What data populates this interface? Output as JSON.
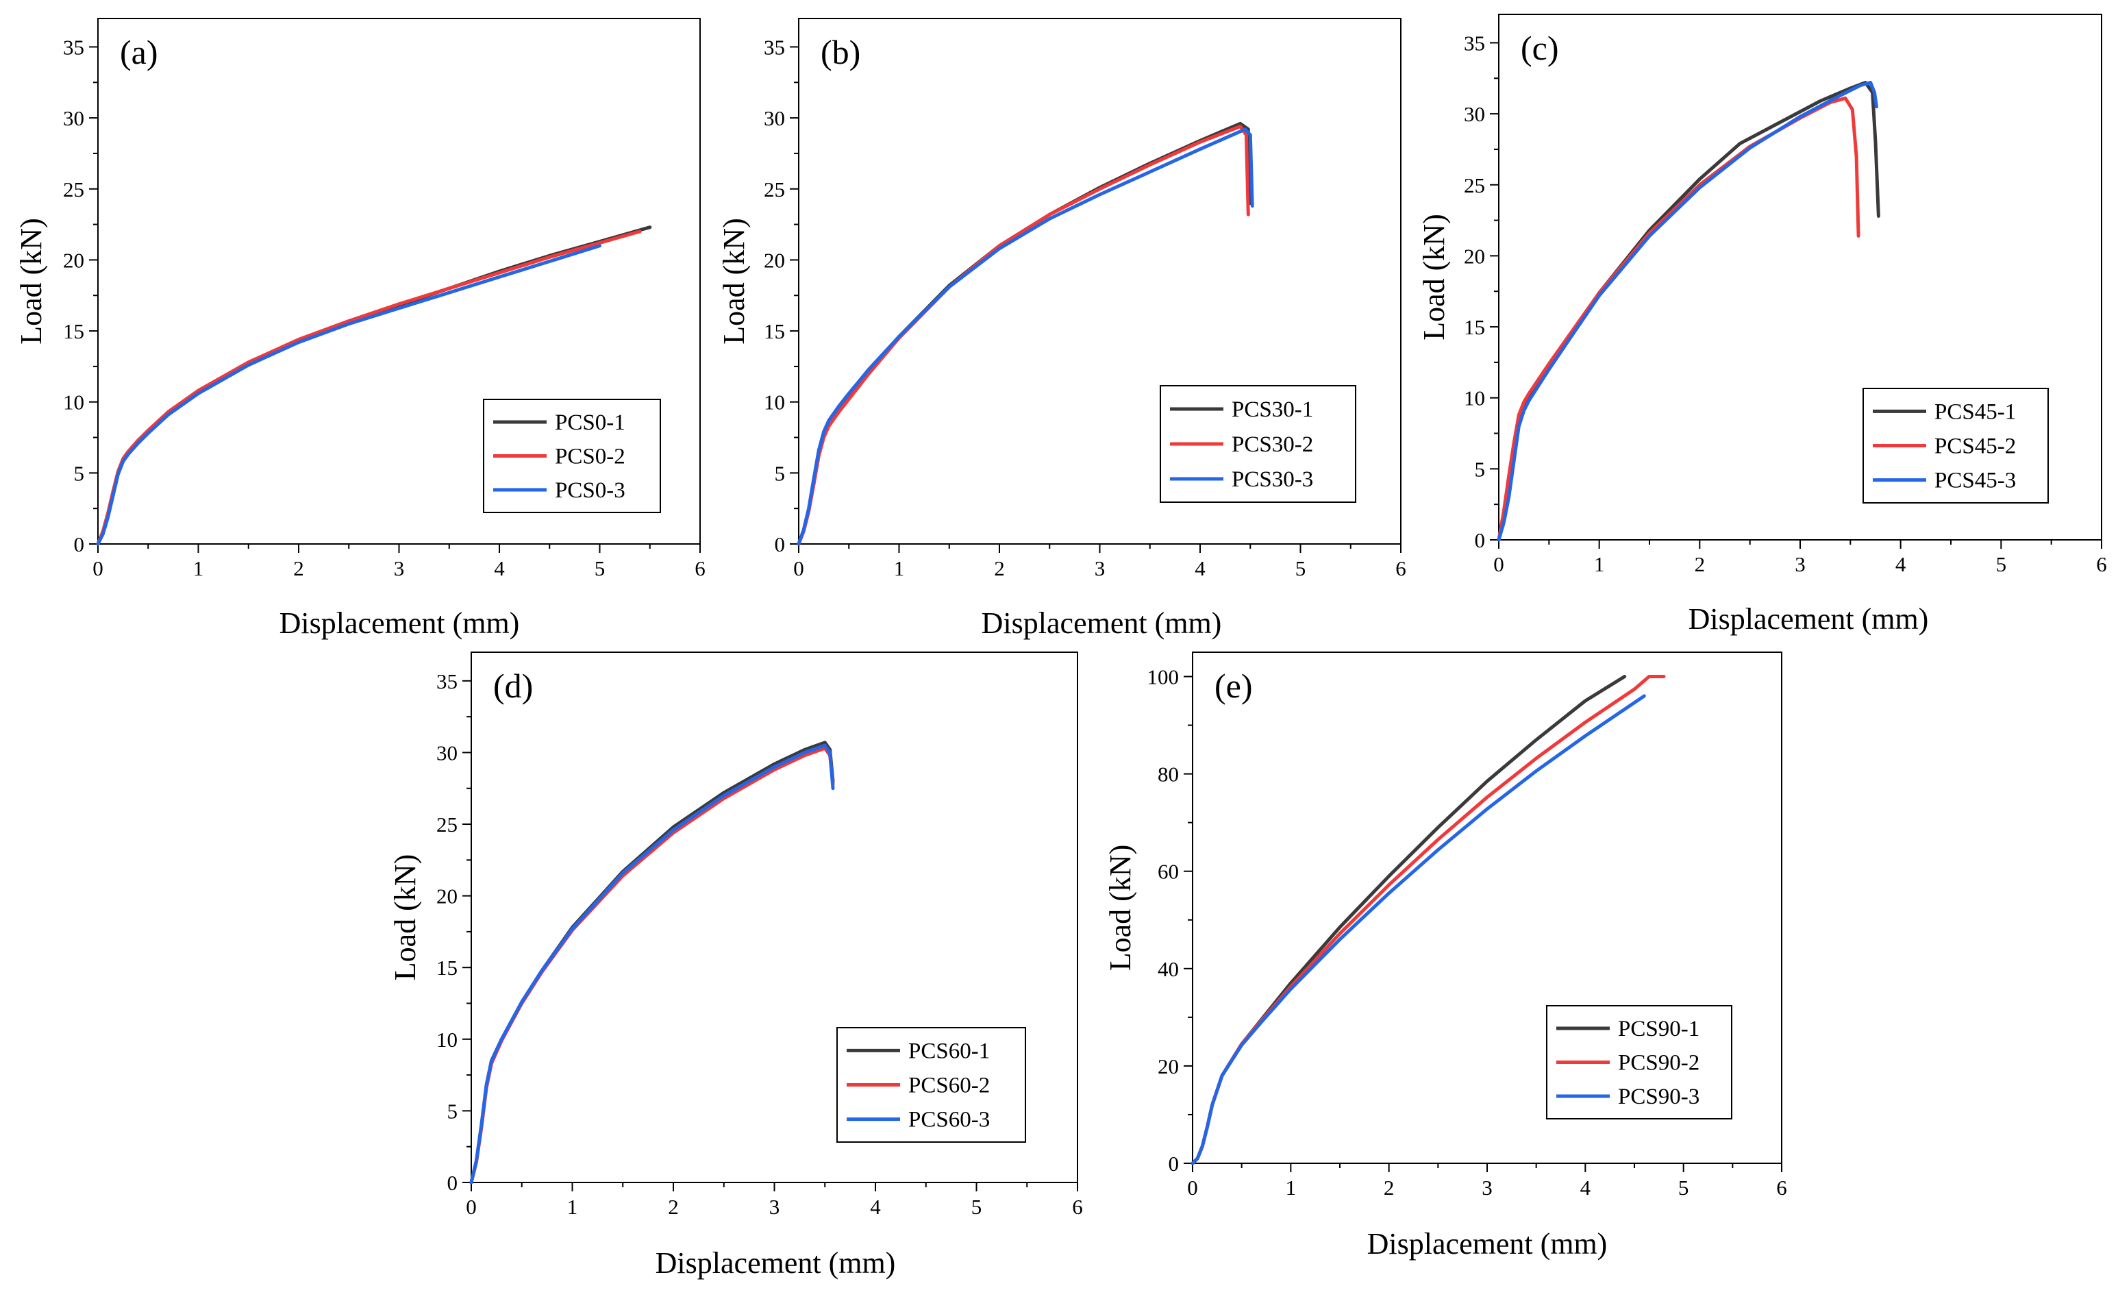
{
  "figure": {
    "colors": {
      "series1": "#3a3a3a",
      "series2": "#f03a3a",
      "series3": "#2566e6"
    }
  },
  "chart_data": [
    {
      "type": "line",
      "panel_label": "(a)",
      "xlabel": "Displacement (mm)",
      "ylabel": "Load (kN)",
      "xlim": [
        0,
        6
      ],
      "ylim": [
        0,
        37
      ],
      "xticks": [
        "0",
        "1",
        "2",
        "3",
        "4",
        "5",
        "6"
      ],
      "yticks": [
        "0",
        "5",
        "10",
        "15",
        "20",
        "25",
        "30",
        "35"
      ],
      "legend_position": "bottom-right",
      "series": [
        {
          "name": "PCS0-1",
          "x": [
            0,
            0.05,
            0.1,
            0.15,
            0.2,
            0.25,
            0.3,
            0.4,
            0.5,
            0.7,
            1.0,
            1.5,
            2.0,
            2.5,
            3.0,
            3.5,
            4.0,
            4.5,
            5.0,
            5.5
          ],
          "y": [
            0,
            0.8,
            2.0,
            3.5,
            5.0,
            5.9,
            6.4,
            7.2,
            7.9,
            9.2,
            10.7,
            12.7,
            14.3,
            15.6,
            16.8,
            18.0,
            19.2,
            20.3,
            21.3,
            22.3
          ]
        },
        {
          "name": "PCS0-2",
          "x": [
            0,
            0.05,
            0.1,
            0.15,
            0.2,
            0.25,
            0.3,
            0.4,
            0.5,
            0.7,
            1.0,
            1.5,
            2.0,
            2.5,
            3.0,
            3.5,
            4.0,
            4.5,
            5.0,
            5.4
          ],
          "y": [
            0,
            0.9,
            2.2,
            3.7,
            5.1,
            6.0,
            6.5,
            7.3,
            8.0,
            9.3,
            10.8,
            12.8,
            14.4,
            15.7,
            16.9,
            18.0,
            19.1,
            20.2,
            21.2,
            22.0
          ]
        },
        {
          "name": "PCS0-3",
          "x": [
            0,
            0.05,
            0.1,
            0.15,
            0.2,
            0.25,
            0.3,
            0.4,
            0.5,
            0.7,
            1.0,
            1.5,
            2.0,
            2.5,
            3.0,
            3.5,
            4.0,
            4.5,
            5.0
          ],
          "y": [
            0,
            0.7,
            1.9,
            3.4,
            4.9,
            5.8,
            6.3,
            7.1,
            7.8,
            9.1,
            10.6,
            12.6,
            14.2,
            15.5,
            16.6,
            17.7,
            18.8,
            19.9,
            21.0
          ]
        }
      ]
    },
    {
      "type": "line",
      "panel_label": "(b)",
      "xlabel": "Displacement (mm)",
      "ylabel": "Load (kN)",
      "xlim": [
        0,
        6
      ],
      "ylim": [
        0,
        37
      ],
      "xticks": [
        "0",
        "1",
        "2",
        "3",
        "4",
        "5",
        "6"
      ],
      "yticks": [
        "0",
        "5",
        "10",
        "15",
        "20",
        "25",
        "30",
        "35"
      ],
      "legend_position": "center-right",
      "series": [
        {
          "name": "PCS30-1",
          "x": [
            0,
            0.05,
            0.1,
            0.15,
            0.2,
            0.25,
            0.3,
            0.4,
            0.5,
            0.7,
            1.0,
            1.5,
            2.0,
            2.5,
            3.0,
            3.5,
            4.0,
            4.4,
            4.48,
            4.5
          ],
          "y": [
            0,
            1.0,
            2.5,
            4.5,
            6.5,
            7.8,
            8.6,
            9.6,
            10.5,
            12.2,
            14.6,
            18.2,
            21.0,
            23.2,
            25.1,
            26.8,
            28.4,
            29.6,
            29.2,
            24.0
          ]
        },
        {
          "name": "PCS30-2",
          "x": [
            0,
            0.05,
            0.1,
            0.15,
            0.2,
            0.25,
            0.3,
            0.4,
            0.5,
            0.7,
            1.0,
            1.5,
            2.0,
            2.5,
            3.0,
            3.5,
            4.0,
            4.4,
            4.46,
            4.48
          ],
          "y": [
            0,
            0.9,
            2.3,
            4.2,
            6.2,
            7.5,
            8.3,
            9.3,
            10.2,
            12.0,
            14.5,
            18.1,
            21.0,
            23.2,
            25.0,
            26.7,
            28.3,
            29.4,
            28.8,
            23.2
          ]
        },
        {
          "name": "PCS30-3",
          "x": [
            0,
            0.05,
            0.1,
            0.15,
            0.2,
            0.25,
            0.3,
            0.4,
            0.5,
            0.7,
            1.0,
            1.5,
            2.0,
            2.5,
            3.0,
            3.5,
            4.0,
            4.45,
            4.5,
            4.52
          ],
          "y": [
            0,
            1.0,
            2.5,
            4.6,
            6.6,
            7.9,
            8.7,
            9.7,
            10.6,
            12.3,
            14.6,
            18.1,
            20.8,
            22.9,
            24.6,
            26.2,
            27.8,
            29.2,
            28.8,
            23.8
          ]
        }
      ]
    },
    {
      "type": "line",
      "panel_label": "(c)",
      "xlabel": "Displacement (mm)",
      "ylabel": "Load (kN)",
      "xlim": [
        0,
        6
      ],
      "ylim": [
        0,
        37
      ],
      "xticks": [
        "0",
        "1",
        "2",
        "3",
        "4",
        "5",
        "6"
      ],
      "yticks": [
        "0",
        "5",
        "10",
        "15",
        "20",
        "25",
        "30",
        "35"
      ],
      "legend_position": "bottom-right",
      "series": [
        {
          "name": "PCS45-1",
          "x": [
            0,
            0.05,
            0.1,
            0.15,
            0.2,
            0.25,
            0.3,
            0.5,
            0.7,
            1.0,
            1.5,
            2.0,
            2.4,
            2.8,
            3.2,
            3.5,
            3.65,
            3.72,
            3.75,
            3.78
          ],
          "y": [
            0,
            1.5,
            3.5,
            6.0,
            8.3,
            9.3,
            10.0,
            12.2,
            14.3,
            17.4,
            21.8,
            25.4,
            27.9,
            29.4,
            30.9,
            31.8,
            32.2,
            31.5,
            28.0,
            22.8
          ]
        },
        {
          "name": "PCS45-2",
          "x": [
            0,
            0.05,
            0.1,
            0.15,
            0.2,
            0.25,
            0.3,
            0.5,
            0.7,
            1.0,
            1.5,
            2.0,
            2.5,
            3.0,
            3.3,
            3.45,
            3.52,
            3.56,
            3.58
          ],
          "y": [
            0,
            2.0,
            4.5,
            6.8,
            8.8,
            9.7,
            10.3,
            12.4,
            14.4,
            17.4,
            21.6,
            25.0,
            27.7,
            29.7,
            30.8,
            31.1,
            30.3,
            27.0,
            21.4
          ]
        },
        {
          "name": "PCS45-3",
          "x": [
            0,
            0.05,
            0.1,
            0.15,
            0.2,
            0.25,
            0.3,
            0.5,
            0.7,
            1.0,
            1.5,
            2.0,
            2.5,
            3.0,
            3.4,
            3.6,
            3.7,
            3.74,
            3.76
          ],
          "y": [
            0,
            1.2,
            3.0,
            5.5,
            8.0,
            9.1,
            9.8,
            12.0,
            14.1,
            17.2,
            21.4,
            24.8,
            27.6,
            29.8,
            31.3,
            32.0,
            32.2,
            31.5,
            30.5
          ]
        }
      ]
    },
    {
      "type": "line",
      "panel_label": "(d)",
      "xlabel": "Displacement (mm)",
      "ylabel": "Load (kN)",
      "xlim": [
        0,
        6
      ],
      "ylim": [
        0,
        37
      ],
      "xticks": [
        "0",
        "1",
        "2",
        "3",
        "4",
        "5",
        "6"
      ],
      "yticks": [
        "0",
        "5",
        "10",
        "15",
        "20",
        "25",
        "30",
        "35"
      ],
      "legend_position": "bottom-right",
      "series": [
        {
          "name": "PCS60-1",
          "x": [
            0,
            0.05,
            0.1,
            0.15,
            0.2,
            0.3,
            0.5,
            0.7,
            1.0,
            1.5,
            2.0,
            2.5,
            3.0,
            3.3,
            3.5,
            3.55,
            3.58
          ],
          "y": [
            0,
            1.5,
            4.0,
            6.8,
            8.5,
            10.0,
            12.6,
            14.8,
            17.8,
            21.7,
            24.8,
            27.2,
            29.2,
            30.2,
            30.7,
            30.2,
            28.0
          ]
        },
        {
          "name": "PCS60-2",
          "x": [
            0,
            0.05,
            0.1,
            0.15,
            0.2,
            0.3,
            0.5,
            0.7,
            1.0,
            1.5,
            2.0,
            2.5,
            3.0,
            3.3,
            3.5,
            3.55,
            3.58
          ],
          "y": [
            0,
            1.4,
            3.8,
            6.6,
            8.3,
            9.9,
            12.5,
            14.7,
            17.6,
            21.4,
            24.4,
            26.8,
            28.8,
            29.8,
            30.3,
            29.8,
            27.8
          ]
        },
        {
          "name": "PCS60-3",
          "x": [
            0,
            0.05,
            0.1,
            0.15,
            0.2,
            0.3,
            0.5,
            0.7,
            1.0,
            1.5,
            2.0,
            2.5,
            3.0,
            3.3,
            3.5,
            3.55,
            3.58
          ],
          "y": [
            0,
            1.5,
            4.0,
            6.8,
            8.5,
            10.0,
            12.6,
            14.8,
            17.7,
            21.6,
            24.6,
            27.0,
            29.0,
            30.0,
            30.5,
            30.0,
            27.5
          ]
        }
      ]
    },
    {
      "type": "line",
      "panel_label": "(e)",
      "xlabel": "Displacement (mm)",
      "ylabel": "Load (kN)",
      "xlim": [
        0,
        6
      ],
      "ylim": [
        0,
        105
      ],
      "xticks": [
        "0",
        "1",
        "2",
        "3",
        "4",
        "5",
        "6"
      ],
      "yticks": [
        "0",
        "20",
        "40",
        "60",
        "80",
        "100"
      ],
      "legend_position": "bottom-right",
      "series": [
        {
          "name": "PCS90-1",
          "x": [
            0,
            0.05,
            0.1,
            0.15,
            0.2,
            0.3,
            0.5,
            0.7,
            1.0,
            1.5,
            2.0,
            2.5,
            3.0,
            3.5,
            4.0,
            4.4
          ],
          "y": [
            0,
            1.0,
            3.5,
            7.5,
            12.0,
            18.0,
            24.5,
            29.5,
            37.0,
            48.5,
            59.0,
            69.0,
            78.5,
            87.0,
            95.0,
            100.0
          ]
        },
        {
          "name": "PCS90-2",
          "x": [
            0,
            0.05,
            0.1,
            0.15,
            0.2,
            0.3,
            0.5,
            0.7,
            1.0,
            1.5,
            2.0,
            2.5,
            3.0,
            3.5,
            4.0,
            4.5,
            4.65,
            4.8
          ],
          "y": [
            0,
            1.0,
            3.5,
            7.5,
            12.0,
            18.0,
            24.5,
            29.3,
            36.3,
            47.2,
            57.2,
            66.5,
            75.2,
            83.2,
            90.6,
            97.4,
            100.0,
            100.0
          ]
        },
        {
          "name": "PCS90-3",
          "x": [
            0,
            0.05,
            0.1,
            0.15,
            0.2,
            0.3,
            0.5,
            0.7,
            1.0,
            1.5,
            2.0,
            2.5,
            3.0,
            3.5,
            4.0,
            4.6
          ],
          "y": [
            0,
            1.0,
            3.5,
            7.5,
            12.0,
            18.0,
            24.3,
            29.0,
            35.8,
            46.0,
            55.5,
            64.4,
            72.8,
            80.6,
            87.8,
            96.0
          ]
        }
      ]
    }
  ]
}
